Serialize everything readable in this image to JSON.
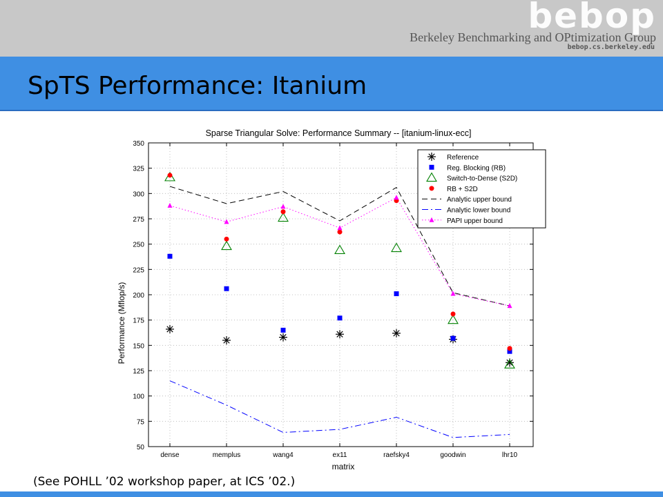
{
  "header": {
    "logo_text": "bebop",
    "group_name": "Berkeley Benchmarking and OPtimization Group",
    "group_url": "bebop.cs.berkeley.edu"
  },
  "slide": {
    "title": "SpTS Performance: Itanium",
    "footnote": "(See POHLL ’02 workshop paper, at ICS ’02.)"
  },
  "colors": {
    "header_gray": "#c8c8c8",
    "title_blue": "#3f8fe3"
  },
  "chart_data": {
    "type": "line",
    "title": "Sparse Triangular Solve: Performance Summary -- [itanium-linux-ecc]",
    "xlabel": "matrix",
    "ylabel": "Performance (Mflop/s)",
    "categories": [
      "dense",
      "memplus",
      "wang4",
      "ex11",
      "raefsky4",
      "goodwin",
      "lhr10"
    ],
    "ylim": [
      50,
      350
    ],
    "yticks": [
      50,
      75,
      100,
      125,
      150,
      175,
      200,
      225,
      250,
      275,
      300,
      325,
      350
    ],
    "grid": true,
    "legend_position": "top-right",
    "series": [
      {
        "name": "Reference",
        "style": "marker",
        "marker": "asterisk",
        "color": "#000000",
        "values": [
          166,
          155,
          158,
          161,
          162,
          156,
          133
        ]
      },
      {
        "name": "Reg. Blocking (RB)",
        "style": "marker",
        "marker": "square",
        "color": "#0000ff",
        "values": [
          238,
          206,
          165,
          177,
          201,
          157,
          144
        ]
      },
      {
        "name": "Switch-to-Dense (S2D)",
        "style": "marker",
        "marker": "triangle",
        "color": "#008000",
        "values": [
          316,
          248,
          276,
          244,
          246,
          175,
          131
        ]
      },
      {
        "name": "RB  +  S2D",
        "style": "marker",
        "marker": "circle",
        "color": "#ff0000",
        "values": [
          318,
          255,
          282,
          262,
          293,
          181,
          147
        ]
      },
      {
        "name": "Analytic upper bound",
        "style": "line",
        "dash": "dashed",
        "color": "#000000",
        "values": [
          307,
          290,
          302,
          273,
          306,
          202,
          189
        ]
      },
      {
        "name": "Analytic lower bound",
        "style": "line",
        "dash": "dashdot",
        "color": "#0000ff",
        "values": [
          115,
          91,
          64,
          67,
          79,
          59,
          62
        ]
      },
      {
        "name": "PAPI upper bound",
        "style": "line+marker",
        "dash": "dotted",
        "marker": "triangle-filled",
        "color": "#ff00ff",
        "values": [
          288,
          272,
          287,
          266,
          296,
          201,
          189
        ]
      }
    ]
  }
}
